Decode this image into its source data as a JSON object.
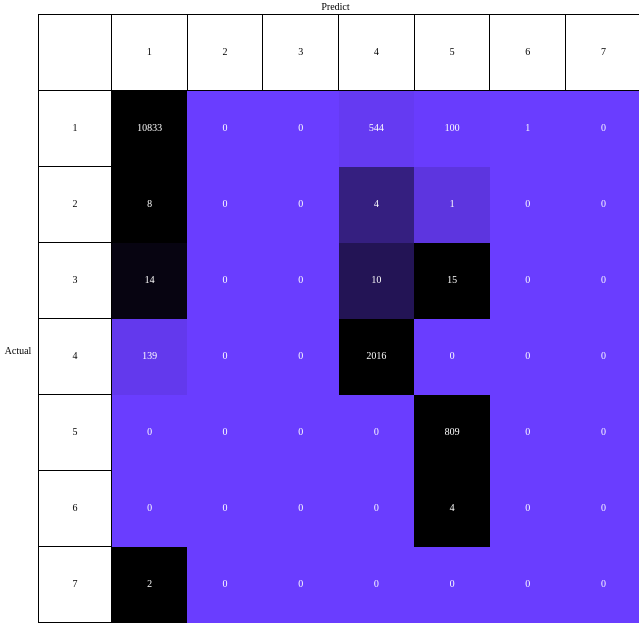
{
  "chart_data": {
    "type": "heatmap",
    "xlabel": "Predict",
    "ylabel": "Actual",
    "x_categories": [
      "1",
      "2",
      "3",
      "4",
      "5",
      "6",
      "7"
    ],
    "y_categories": [
      "1",
      "2",
      "3",
      "4",
      "5",
      "6",
      "7"
    ],
    "values": [
      [
        10833,
        0,
        0,
        544,
        100,
        1,
        0
      ],
      [
        8,
        0,
        0,
        4,
        1,
        0,
        0
      ],
      [
        14,
        0,
        0,
        10,
        15,
        0,
        0
      ],
      [
        139,
        0,
        0,
        2016,
        0,
        0,
        0
      ],
      [
        0,
        0,
        0,
        0,
        809,
        0,
        0
      ],
      [
        0,
        0,
        0,
        0,
        4,
        0,
        0
      ],
      [
        2,
        0,
        0,
        0,
        0,
        0,
        0
      ]
    ],
    "colors": {
      "low": "#6a3dff",
      "high": "#000000"
    },
    "color_scale": "row-normalized"
  }
}
